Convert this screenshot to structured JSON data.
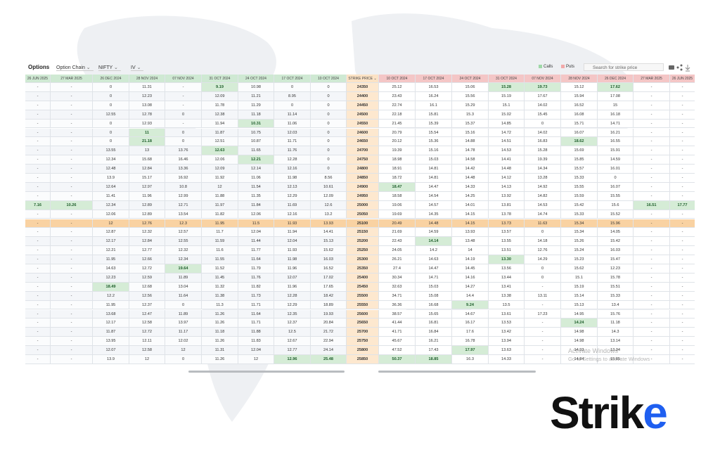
{
  "toolbar": {
    "title": "Options",
    "dropdowns": [
      "Option Chain",
      "NIFTY",
      "IV"
    ],
    "legend": [
      "Calls",
      "Puts"
    ],
    "search": "Search for strike price"
  },
  "table": {
    "columns": [
      "26 JUN 2025",
      "27 MAR 2025",
      "26 DEC 2024",
      "28 NOV 2024",
      "07 NOV 2024",
      "31 OCT 2024",
      "24 OCT 2024",
      "17 OCT 2024",
      "10 OCT 2024",
      "STRIKE PRICE",
      "10 OCT 2024",
      "17 OCT 2024",
      "24 OCT 2024",
      "31 OCT 2024",
      "07 NOV 2024",
      "28 NOV 2024",
      "26 DEC 2024",
      "27 MAR 2025",
      "26 JUN 2025"
    ],
    "rows": [
      {
        "cells": [
          "-",
          "-",
          "0",
          "11.31",
          "-",
          {
            "text": "9.19",
            "highlight": true
          },
          "10.98",
          "0",
          "0",
          "24350",
          "25.12",
          "16.53",
          "15.06",
          {
            "text": "15.28",
            "highlight": true
          },
          {
            "text": "19.73",
            "highlight": true
          },
          "15.12",
          {
            "text": "17.62",
            "highlight": true
          },
          "-",
          "-"
        ]
      },
      {
        "cells": [
          "-",
          "-",
          "0",
          "12.23",
          "-",
          "12.09",
          "11.21",
          "8.95",
          "0",
          "24400",
          "23.43",
          "16.24",
          "15.56",
          "15.19",
          "17.67",
          "15.94",
          "17.08",
          "-",
          "-"
        ]
      },
      {
        "cells": [
          "-",
          "-",
          "0",
          "13.08",
          "-",
          "11.78",
          "11.29",
          "0",
          "0",
          "24450",
          "22.74",
          "16.1",
          "15.29",
          "15.1",
          "14.02",
          "16.52",
          "15",
          "-",
          "-"
        ]
      },
      {
        "cells": [
          "-",
          "-",
          "12.55",
          "12.78",
          "0",
          "12.38",
          "11.18",
          "11.14",
          "0",
          "24500",
          "22.18",
          "15.81",
          "15.3",
          "15.02",
          "15.45",
          "16.08",
          "16.18",
          "-",
          "-"
        ]
      },
      {
        "cells": [
          "-",
          "-",
          "0",
          "12.93",
          "-",
          "11.94",
          {
            "text": "10.31",
            "highlight": true
          },
          "11.06",
          "0",
          "24550",
          "21.45",
          "15.39",
          "15.37",
          "14.85",
          "0",
          "15.71",
          "14.71",
          "-",
          "-"
        ]
      },
      {
        "cells": [
          "-",
          "-",
          "0",
          {
            "text": "11",
            "highlight": true
          },
          "0",
          "11.87",
          "10.75",
          "12.03",
          "0",
          "24600",
          "20.79",
          "15.54",
          "15.16",
          "14.72",
          "14.02",
          "16.07",
          "16.21",
          "-",
          "-"
        ]
      },
      {
        "cells": [
          "-",
          "-",
          "0",
          {
            "text": "21.18",
            "highlight": true
          },
          "0",
          "12.51",
          "10.87",
          "11.71",
          "0",
          "24650",
          "20.12",
          "15.36",
          "14.88",
          "14.51",
          "16.83",
          {
            "text": "18.62",
            "highlight": true
          },
          "16.55",
          "-",
          "-"
        ]
      },
      {
        "cells": [
          "-",
          "-",
          "13.55",
          "13",
          "13.76",
          {
            "text": "12.63",
            "highlight": true
          },
          "11.65",
          "11.76",
          "0",
          "24700",
          "19.39",
          "15.16",
          "14.78",
          "14.53",
          "15.28",
          "15.69",
          "15.91",
          "-",
          "-"
        ]
      },
      {
        "cells": [
          "-",
          "-",
          "12.34",
          "15.68",
          "16.46",
          "12.06",
          {
            "text": "12.21",
            "highlight": true
          },
          "12.28",
          "0",
          "24750",
          "18.98",
          "15.03",
          "14.58",
          "14.41",
          "19.39",
          "15.85",
          "14.59",
          "-",
          "-"
        ]
      },
      {
        "cells": [
          "-",
          "-",
          "12.48",
          "12.84",
          "13.36",
          "12.09",
          "12.14",
          "12.16",
          "0",
          "24800",
          "18.91",
          "14.81",
          "14.42",
          "14.48",
          "14.34",
          "15.57",
          "16.01",
          "-",
          "-"
        ]
      },
      {
        "cells": [
          "-",
          "-",
          "13.9",
          "15.17",
          "16.92",
          "11.92",
          "11.06",
          "11.98",
          "8.56",
          "24850",
          "18.72",
          "14.81",
          "14.48",
          "14.12",
          "13.28",
          "15.33",
          "0",
          "-",
          "-"
        ]
      },
      {
        "cells": [
          "-",
          "-",
          "12.64",
          "12.97",
          "10.8",
          "12",
          "11.54",
          "12.13",
          "10.61",
          "24900",
          {
            "text": "18.47",
            "highlight": true
          },
          "14.47",
          "14.33",
          "14.13",
          "14.92",
          "15.55",
          "16.07",
          "-",
          "-"
        ]
      },
      {
        "cells": [
          "-",
          "-",
          "11.41",
          "11.96",
          "12.99",
          "11.88",
          "11.35",
          "12.29",
          "12.09",
          "24950",
          "18.58",
          "14.54",
          "14.25",
          "13.92",
          "14.82",
          "15.59",
          "15.55",
          "-",
          "-"
        ]
      },
      {
        "cells": [
          {
            "text": "7.16",
            "highlight": true
          },
          {
            "text": "10.26",
            "highlight": true
          },
          "12.34",
          "12.89",
          "12.71",
          "11.97",
          "11.84",
          "11.69",
          "12.6",
          "25000",
          "19.06",
          "14.57",
          "14.01",
          "13.81",
          "14.53",
          "15.42",
          "15.6",
          {
            "text": "16.51",
            "highlight": true
          },
          {
            "text": "17.77",
            "highlight": true
          }
        ]
      },
      {
        "cells": [
          "-",
          "-",
          "12.06",
          "12.89",
          "13.54",
          "11.82",
          "12.06",
          "12.16",
          "13.2",
          "25050",
          "19.69",
          "14.35",
          "14.15",
          "13.78",
          "14.74",
          "15.33",
          "15.52",
          "-",
          "-"
        ]
      },
      {
        "cells": [
          "-",
          "-",
          "12",
          "12.76",
          "12.3",
          "11.95",
          "11.5",
          "11.93",
          "13.93",
          "25100",
          "20.49",
          "14.48",
          "14.15",
          "13.73",
          "11.63",
          "15.34",
          "15.96",
          "-",
          "-"
        ],
        "atm": true
      },
      {
        "cells": [
          "-",
          "-",
          "12.87",
          "12.32",
          "12.57",
          "11.7",
          "12.04",
          "11.94",
          "14.41",
          "25150",
          "21.69",
          "14.59",
          "13.93",
          "13.57",
          "0",
          "15.34",
          "14.05",
          "-",
          "-"
        ]
      },
      {
        "cells": [
          "-",
          "-",
          "12.17",
          "12.84",
          "12.55",
          "11.59",
          "11.44",
          "12.04",
          "15.13",
          "25200",
          "22.43",
          {
            "text": "14.14",
            "highlight": true
          },
          "13.48",
          "13.55",
          "14.18",
          "15.26",
          "15.42",
          "-",
          "-"
        ]
      },
      {
        "cells": [
          "-",
          "-",
          "12.21",
          "12.77",
          "12.32",
          "11.6",
          "11.77",
          "11.93",
          "15.62",
          "25250",
          "24.05",
          "14.2",
          "14",
          "13.51",
          "12.76",
          "15.24",
          "16.03",
          "-",
          "-"
        ]
      },
      {
        "cells": [
          "-",
          "-",
          "11.95",
          "12.66",
          "12.34",
          "11.55",
          "11.64",
          "11.98",
          "16.03",
          "25300",
          "26.21",
          "14.63",
          "14.19",
          {
            "text": "13.30",
            "highlight": true
          },
          "14.29",
          "15.23",
          "15.47",
          "-",
          "-"
        ]
      },
      {
        "cells": [
          "-",
          "-",
          "14.63",
          "12.72",
          {
            "text": "19.64",
            "highlight": true
          },
          "11.52",
          "11.79",
          "11.96",
          "16.52",
          "25350",
          "27.4",
          "14.47",
          "14.45",
          "13.56",
          "0",
          "15.62",
          "12.23",
          "-",
          "-"
        ]
      },
      {
        "cells": [
          "-",
          "-",
          "12.23",
          "12.59",
          "11.89",
          "11.45",
          "11.76",
          "12.07",
          "17.02",
          "25400",
          "30.34",
          "14.71",
          "14.16",
          "13.44",
          "0",
          "15.1",
          "15.78",
          "-",
          "-"
        ]
      },
      {
        "cells": [
          "-",
          "-",
          {
            "text": "18.49",
            "highlight": true
          },
          "12.68",
          "13.04",
          "11.32",
          "11.82",
          "11.96",
          "17.65",
          "25450",
          "32.63",
          "15.03",
          "14.27",
          "13.41",
          "-",
          "15.19",
          "15.51",
          "-",
          "-"
        ]
      },
      {
        "cells": [
          "-",
          "-",
          "12.2",
          "12.56",
          "11.64",
          "11.38",
          "11.73",
          "12.28",
          "18.42",
          "25500",
          "34.71",
          "15.08",
          "14.4",
          "13.38",
          "13.11",
          "15.14",
          "15.33",
          "-",
          "-"
        ]
      },
      {
        "cells": [
          "-",
          "-",
          "11.95",
          "12.37",
          "0",
          "11.3",
          "11.71",
          "12.29",
          "18.89",
          "25550",
          "36.36",
          "16.68",
          {
            "text": "9.24",
            "highlight": true
          },
          "13.5",
          "-",
          "15.13",
          "13.4",
          "-",
          "-"
        ]
      },
      {
        "cells": [
          "-",
          "-",
          "13.68",
          "12.47",
          "11.89",
          "11.26",
          "11.64",
          "12.35",
          "19.93",
          "25600",
          "38.57",
          "15.65",
          "14.67",
          "13.61",
          "17.23",
          "14.95",
          "15.76",
          "-",
          "-"
        ]
      },
      {
        "cells": [
          "-",
          "-",
          "12.17",
          "12.58",
          "13.97",
          "11.26",
          "11.71",
          "12.37",
          "20.84",
          "25650",
          "41.44",
          "16.81",
          "16.17",
          "13.53",
          "-",
          {
            "text": "14.24",
            "highlight": true
          },
          "11.18",
          "-",
          "-"
        ]
      },
      {
        "cells": [
          "-",
          "-",
          "11.87",
          "12.72",
          "11.17",
          "11.18",
          "11.88",
          "12.5",
          "21.72",
          "25700",
          "41.71",
          "16.84",
          "17.6",
          "13.42",
          "-",
          "14.98",
          "14.3",
          "-",
          "-"
        ]
      },
      {
        "cells": [
          "-",
          "-",
          "13.95",
          "12.11",
          "12.02",
          "11.26",
          "11.83",
          "12.67",
          "22.94",
          "25750",
          "45.67",
          "16.21",
          "16.78",
          "13.94",
          "-",
          "14.98",
          "13.14",
          "-",
          "-"
        ]
      },
      {
        "cells": [
          "-",
          "-",
          "12.07",
          "12.58",
          "12",
          "11.31",
          "12.04",
          "12.77",
          "24.14",
          "25800",
          "47.52",
          "17.43",
          {
            "text": "17.97",
            "highlight": true
          },
          "13.63",
          "-",
          "14.93",
          "13.34",
          "-",
          "-"
        ]
      },
      {
        "cells": [
          "-",
          "-",
          "13.9",
          "12",
          "0",
          "11.26",
          "12",
          {
            "text": "12.96",
            "highlight": true
          },
          {
            "text": "25.48",
            "highlight": true
          },
          "25850",
          {
            "text": "50.37",
            "highlight": true
          },
          {
            "text": "18.85",
            "highlight": true
          },
          "16.3",
          "14.33",
          "-",
          "14.84",
          "15.85",
          "-",
          "-"
        ]
      }
    ]
  },
  "watermark": [
    "Activate Windows",
    "Go to Settings to activate Windows"
  ],
  "logo": {
    "main": "Strik",
    "accent": "e"
  }
}
